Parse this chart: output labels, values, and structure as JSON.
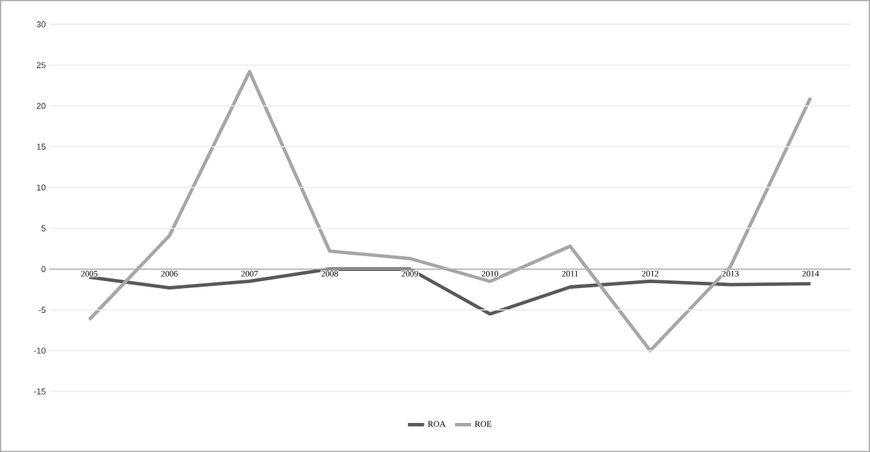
{
  "chart_data": {
    "type": "line",
    "categories": [
      "2005",
      "2006",
      "2007",
      "2008",
      "2009",
      "2010",
      "2011",
      "2012",
      "2013",
      "2014"
    ],
    "series": [
      {
        "name": "ROA",
        "color": "#595959",
        "values": [
          -1.0,
          -2.3,
          -1.5,
          0,
          0,
          -5.5,
          -2.2,
          -1.5,
          -1.9,
          -1.8
        ]
      },
      {
        "name": "ROE",
        "color": "#a6a6a6",
        "values": [
          -6.2,
          4.1,
          24.2,
          2.2,
          1.3,
          -1.5,
          2.8,
          -10.0,
          0.3,
          21.0
        ]
      }
    ],
    "ylim": [
      -15,
      30
    ],
    "yticks": [
      -15,
      -10,
      -5,
      0,
      5,
      10,
      15,
      20,
      25,
      30
    ],
    "grid": "y",
    "legend": "bottom"
  }
}
